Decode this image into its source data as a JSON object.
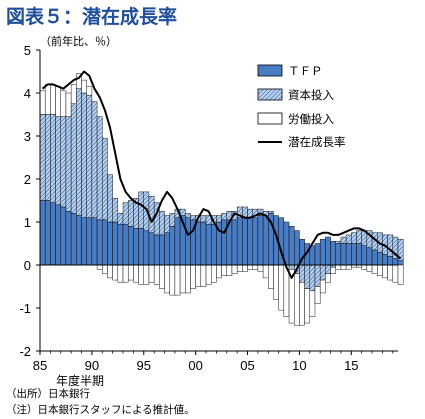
{
  "figure": {
    "title": "図表５：潜在成長率",
    "unit": "（前年比、％）",
    "x_axis_title": "年度半期",
    "notes": [
      "（出所）日本銀行",
      "（注）日本銀行スタッフによる推計値。"
    ]
  },
  "colors": {
    "tfp": "#4a7cc4",
    "capital": "#b9d2ee",
    "capital_hatch": "#2d5aa0",
    "labor": "#ffffff",
    "line": "#000000"
  },
  "chart_data": {
    "type": "bar",
    "stacked": true,
    "x_unit": "fiscal half-year",
    "x_start": 1985.0,
    "x_step": 0.5,
    "xlim": [
      1985,
      2019.5
    ],
    "ylim": [
      -2,
      5
    ],
    "y_ticks": [
      "-2",
      "-1",
      "0",
      "1",
      "2",
      "3",
      "4",
      "5"
    ],
    "x_ticks": [
      "85",
      "90",
      "95",
      "00",
      "05",
      "10",
      "15"
    ],
    "legend_position": "top-right",
    "series": [
      {
        "name": "ＴＦＰ",
        "kind": "bar",
        "values": [
          1.5,
          1.5,
          1.45,
          1.4,
          1.35,
          1.25,
          1.2,
          1.15,
          1.1,
          1.1,
          1.1,
          1.05,
          1.05,
          1.0,
          1.0,
          0.95,
          0.95,
          0.9,
          0.85,
          0.85,
          0.8,
          0.75,
          0.7,
          0.7,
          0.75,
          0.9,
          1.1,
          1.15,
          1.1,
          1.05,
          1.0,
          1.0,
          0.95,
          0.95,
          1.0,
          1.05,
          1.05,
          1.05,
          1.1,
          1.1,
          1.1,
          1.1,
          1.15,
          1.15,
          1.2,
          1.15,
          1.1,
          1.0,
          0.9,
          0.8,
          0.6,
          0.5,
          0.45,
          0.5,
          0.6,
          0.65,
          0.55,
          0.5,
          0.5,
          0.5,
          0.5,
          0.5,
          0.45,
          0.4,
          0.35,
          0.3,
          0.25,
          0.2,
          0.15,
          0.1
        ]
      },
      {
        "name": "資本投入",
        "kind": "bar",
        "values": [
          2.0,
          2.0,
          2.05,
          2.05,
          2.1,
          2.2,
          2.55,
          2.95,
          2.9,
          2.85,
          2.7,
          2.4,
          1.9,
          1.1,
          0.55,
          0.25,
          0.5,
          0.6,
          0.7,
          0.85,
          0.9,
          0.85,
          0.75,
          0.55,
          0.4,
          0.3,
          0.2,
          0.15,
          0.1,
          0.1,
          0.15,
          0.15,
          0.2,
          0.2,
          0.15,
          0.15,
          0.2,
          0.2,
          0.25,
          0.25,
          0.2,
          0.2,
          0.15,
          0.1,
          0.05,
          0.0,
          0.0,
          0.0,
          -0.1,
          -0.2,
          -0.4,
          -0.55,
          -0.6,
          -0.5,
          -0.35,
          -0.2,
          -0.05,
          0.05,
          0.15,
          0.2,
          0.25,
          0.3,
          0.35,
          0.4,
          0.4,
          0.45,
          0.45,
          0.5,
          0.5,
          0.5
        ]
      },
      {
        "name": "労働投入",
        "kind": "bar",
        "values": [
          0.55,
          0.7,
          0.7,
          0.7,
          0.6,
          0.55,
          0.45,
          0.35,
          0.3,
          0.2,
          0.0,
          -0.1,
          -0.2,
          -0.3,
          -0.35,
          -0.4,
          -0.4,
          -0.35,
          -0.4,
          -0.45,
          -0.45,
          -0.4,
          -0.45,
          -0.55,
          -0.65,
          -0.7,
          -0.7,
          -0.65,
          -0.65,
          -0.55,
          -0.5,
          -0.5,
          -0.45,
          -0.4,
          -0.3,
          -0.25,
          -0.25,
          -0.2,
          -0.15,
          -0.15,
          -0.1,
          -0.1,
          -0.15,
          -0.3,
          -0.55,
          -0.8,
          -1.05,
          -1.2,
          -1.25,
          -1.2,
          -1.0,
          -0.8,
          -0.6,
          -0.4,
          -0.3,
          -0.2,
          -0.15,
          -0.1,
          -0.1,
          -0.1,
          -0.05,
          -0.05,
          -0.1,
          -0.15,
          -0.2,
          -0.25,
          -0.3,
          -0.35,
          -0.4,
          -0.45
        ]
      },
      {
        "name": "潜在成長率",
        "kind": "line",
        "x": [
          1985.0,
          1985.5,
          1986.0,
          1986.5,
          1987.0,
          1987.5,
          1988.0,
          1988.5,
          1989.0,
          1989.5,
          1990.0,
          1990.5,
          1991.0,
          1991.5,
          1992.0,
          1992.5,
          1993.0,
          1993.5,
          1994.0,
          1994.5,
          1995.0,
          1995.5,
          1996.0,
          1996.5,
          1997.0,
          1997.5,
          1998.0,
          1998.5,
          1999.0,
          1999.5,
          2000.0,
          2000.5,
          2001.0,
          2001.5,
          2002.0,
          2002.5,
          2003.0,
          2003.5,
          2004.0,
          2004.5,
          2005.0,
          2005.5,
          2006.0,
          2006.5,
          2007.0,
          2007.5,
          2008.0,
          2008.5,
          2009.0,
          2009.5,
          2010.0,
          2010.5,
          2011.0,
          2011.5,
          2012.0,
          2012.5,
          2013.0,
          2013.5,
          2014.0,
          2014.5,
          2015.0,
          2015.5,
          2016.0,
          2016.5,
          2017.0,
          2017.5,
          2018.0,
          2018.5,
          2019.0,
          2019.5
        ],
        "values": [
          4.1,
          4.2,
          4.2,
          4.15,
          4.1,
          4.2,
          4.3,
          4.35,
          4.5,
          4.4,
          4.1,
          3.9,
          3.6,
          3.2,
          2.6,
          2.0,
          1.7,
          1.55,
          1.45,
          1.4,
          1.3,
          1.0,
          1.2,
          1.5,
          1.7,
          1.55,
          1.3,
          1.0,
          0.7,
          0.8,
          1.1,
          1.3,
          1.25,
          1.0,
          0.8,
          0.75,
          1.0,
          1.2,
          1.15,
          1.1,
          1.1,
          1.15,
          1.2,
          1.15,
          1.0,
          0.7,
          0.3,
          -0.05,
          -0.3,
          -0.1,
          0.15,
          0.3,
          0.5,
          0.7,
          0.75,
          0.75,
          0.7,
          0.7,
          0.75,
          0.8,
          0.85,
          0.85,
          0.8,
          0.7,
          0.6,
          0.5,
          0.45,
          0.35,
          0.25,
          0.15
        ]
      }
    ]
  }
}
